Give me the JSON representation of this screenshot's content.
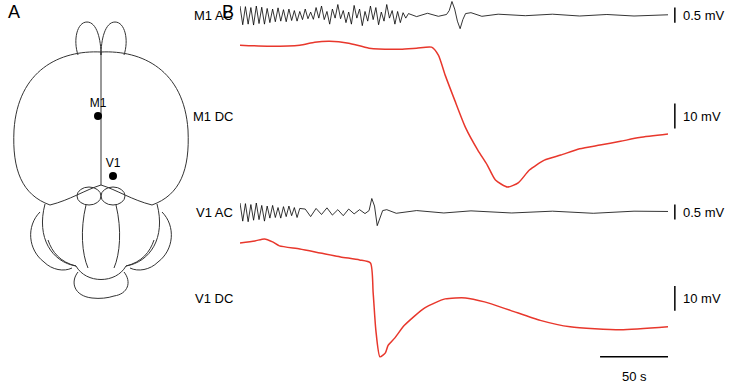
{
  "panel_labels": [
    "A",
    "B"
  ],
  "schematic": {
    "sites": [
      {
        "label": "M1"
      },
      {
        "label": "V1"
      }
    ]
  },
  "time_scale_bar": {
    "value": 50,
    "label": "50 s"
  },
  "chart_data": [
    {
      "type": "line",
      "title": "M1 AC",
      "color": "#000000",
      "tick_labels": false,
      "xlim": [
        0,
        315
      ],
      "ylim": [
        -0.5,
        0.5
      ],
      "scale_bar": {
        "value": 0.5,
        "label": "0.5 mV"
      },
      "x": [
        0,
        2,
        4,
        6,
        8,
        10,
        12,
        14,
        16,
        18,
        20,
        22,
        24,
        26,
        28,
        30,
        32,
        34,
        36,
        38,
        40,
        42,
        44,
        46,
        48,
        50,
        52,
        54,
        56,
        58,
        60,
        62,
        64,
        66,
        68,
        70,
        72,
        74,
        76,
        78,
        80,
        82,
        84,
        86,
        88,
        90,
        92,
        94,
        96,
        98,
        100,
        102,
        104,
        106,
        108,
        110,
        112,
        114,
        116,
        118,
        120,
        122,
        124,
        130,
        138,
        146,
        152,
        154,
        156,
        158,
        160,
        162,
        164,
        166,
        170,
        178,
        190,
        210,
        230,
        250,
        270,
        290,
        315
      ],
      "values": [
        0.3,
        -0.32,
        0.28,
        -0.3,
        0.25,
        -0.33,
        0.3,
        -0.28,
        0.26,
        -0.3,
        0.22,
        -0.25,
        0.2,
        -0.22,
        0.24,
        -0.2,
        0.18,
        -0.22,
        0.2,
        -0.18,
        0.15,
        -0.2,
        0.12,
        -0.15,
        0.2,
        -0.12,
        0.1,
        -0.14,
        0.25,
        -0.1,
        0.3,
        -0.15,
        0.12,
        -0.3,
        0.2,
        -0.1,
        0.35,
        -0.12,
        0.15,
        -0.25,
        0.1,
        -0.3,
        0.32,
        -0.1,
        0.2,
        -0.35,
        0.12,
        -0.2,
        0.3,
        -0.15,
        0.25,
        -0.32,
        0.1,
        -0.2,
        0.35,
        -0.1,
        0.15,
        -0.3,
        0.12,
        -0.25,
        0.08,
        -0.1,
        0.05,
        -0.05,
        0.06,
        -0.04,
        0.02,
        0.15,
        0.45,
        0.2,
        -0.2,
        -0.45,
        -0.15,
        0.05,
        0.08,
        -0.04,
        0.03,
        -0.02,
        0.03,
        -0.03,
        0.02,
        -0.03,
        0.01
      ]
    },
    {
      "type": "line",
      "title": "M1 DC",
      "color": "#e8372c",
      "tick_labels": false,
      "xlim": [
        0,
        315
      ],
      "ylim": [
        -60,
        3.2
      ],
      "scale_bar": {
        "value": 10,
        "label": "10 mV"
      },
      "x": [
        0,
        20,
        44,
        55,
        66,
        80,
        95,
        118,
        130,
        141,
        146,
        151,
        158,
        166,
        175,
        182,
        188,
        197,
        205,
        213,
        224,
        236,
        250,
        265,
        280,
        294,
        315
      ],
      "values": [
        0,
        -0.4,
        0,
        1.2,
        1.6,
        0.8,
        -1.2,
        -1.6,
        -1.2,
        -0.8,
        -4,
        -12,
        -22,
        -33,
        -42,
        -48,
        -54,
        -56.8,
        -55,
        -50,
        -46,
        -44,
        -41.5,
        -40,
        -38.5,
        -37,
        -35.6
      ]
    },
    {
      "type": "line",
      "title": "V1 AC",
      "color": "#000000",
      "tick_labels": false,
      "xlim": [
        0,
        315
      ],
      "ylim": [
        -0.5,
        0.5
      ],
      "scale_bar": {
        "value": 0.5,
        "label": "0.5 mV"
      },
      "x": [
        0,
        2,
        4,
        6,
        8,
        10,
        12,
        14,
        16,
        18,
        20,
        22,
        24,
        26,
        28,
        30,
        32,
        34,
        36,
        38,
        40,
        42,
        44,
        48,
        52,
        56,
        60,
        64,
        68,
        72,
        76,
        80,
        84,
        88,
        92,
        95,
        97,
        99,
        101,
        103,
        105,
        108,
        115,
        130,
        150,
        170,
        200,
        230,
        260,
        290,
        315
      ],
      "values": [
        0.3,
        -0.3,
        0.28,
        -0.32,
        0.25,
        -0.27,
        0.3,
        -0.25,
        0.22,
        -0.3,
        0.2,
        -0.2,
        0.22,
        -0.18,
        0.15,
        -0.2,
        0.18,
        -0.15,
        0.2,
        -0.12,
        0.15,
        -0.18,
        0.12,
        0.1,
        -0.15,
        0.12,
        -0.08,
        0.14,
        -0.1,
        0.08,
        -0.12,
        0.1,
        -0.06,
        0.08,
        -0.05,
        0.05,
        0.45,
        0.2,
        -0.45,
        -0.2,
        0.05,
        0.08,
        -0.04,
        0.05,
        -0.03,
        0.04,
        -0.03,
        0.03,
        -0.04,
        0.03,
        0.02
      ]
    },
    {
      "type": "line",
      "title": "V1 DC",
      "color": "#e8372c",
      "tick_labels": false,
      "xlim": [
        0,
        315
      ],
      "ylim": [
        -47.6,
        3.2
      ],
      "scale_bar": {
        "value": 10,
        "label": "10 mV"
      },
      "x": [
        0,
        11,
        18,
        24,
        29,
        44,
        59,
        74,
        88,
        96,
        98,
        100,
        103,
        107,
        109,
        114,
        121,
        136,
        151,
        166,
        180,
        199,
        221,
        243,
        280,
        315
      ],
      "values": [
        0,
        0.8,
        1.6,
        0.4,
        -1.2,
        -2.4,
        -4,
        -5.6,
        -6.8,
        -8,
        -20,
        -35,
        -45.6,
        -44,
        -41,
        -38,
        -33,
        -26,
        -22.4,
        -22,
        -23.6,
        -27,
        -31,
        -33.6,
        -34.8,
        -33.6
      ]
    }
  ]
}
